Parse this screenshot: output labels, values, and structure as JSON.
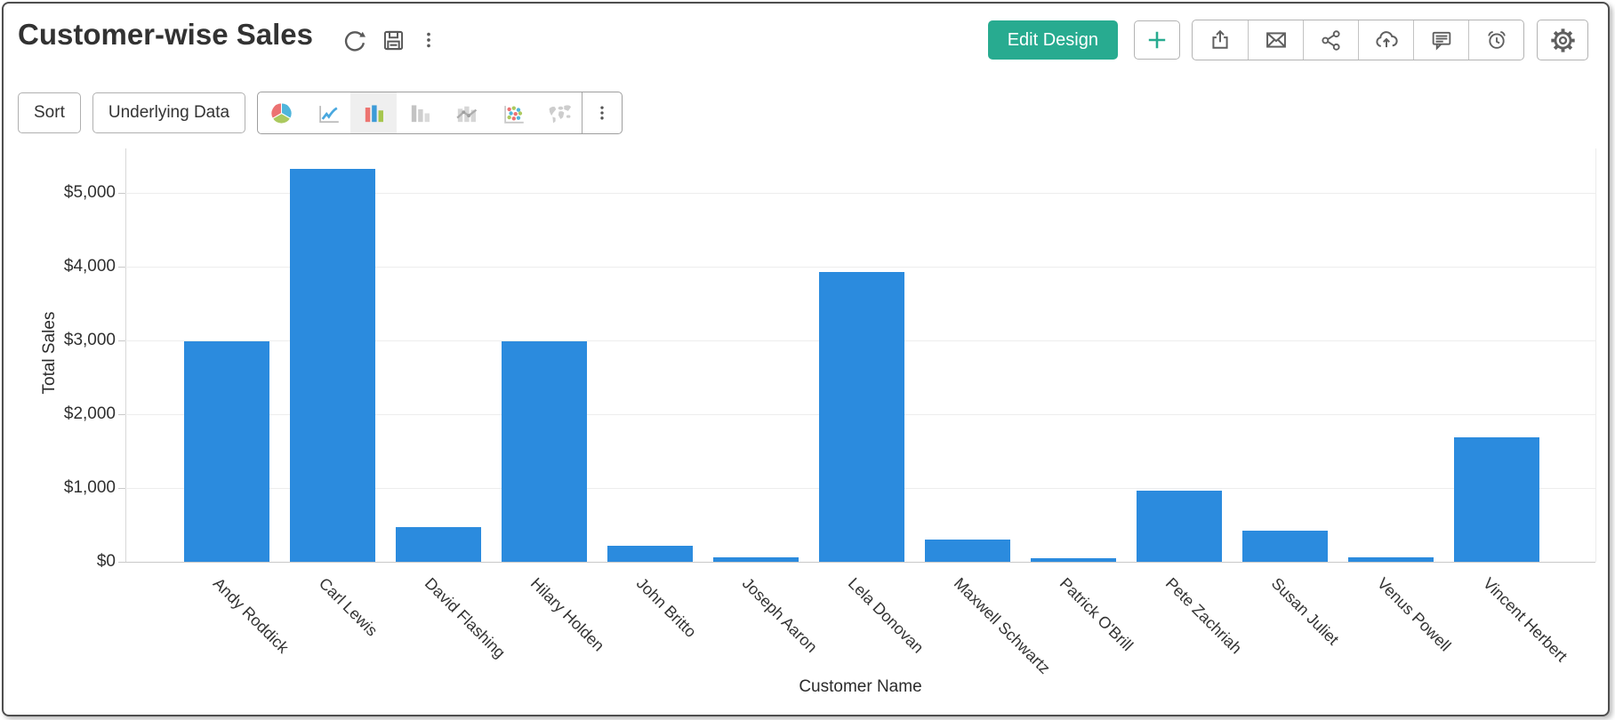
{
  "header": {
    "title": "Customer-wise Sales",
    "edit_design_button": "Edit Design",
    "title_action_icons": [
      "refresh-icon",
      "save-icon",
      "more-options-icon"
    ],
    "right_action_icons": [
      "add-icon",
      "export-icon",
      "email-icon",
      "share-icon",
      "cloud-upload-icon",
      "comment-icon",
      "alarm-icon",
      "settings-icon"
    ],
    "accent_green": "#28AB90"
  },
  "toolbar": {
    "sort_button": "Sort",
    "underlying_data_button": "Underlying Data",
    "chart_type_icons": [
      "pie-chart-icon",
      "line-chart-icon",
      "bar-chart-icon",
      "stacked-bar-chart-icon",
      "bar-line-combo-chart-icon",
      "scatter-chart-icon",
      "map-chart-icon",
      "more-chart-types-icon"
    ],
    "active_chart_type": "bar"
  },
  "chart_data": {
    "type": "bar",
    "title": "Customer-wise Sales",
    "xlabel": "Customer Name",
    "ylabel": "Total Sales",
    "categories": [
      "Andy Roddick",
      "Carl Lewis",
      "David Flashing",
      "Hilary Holden",
      "John Britto",
      "Joseph Aaron",
      "Lela Donovan",
      "Maxwell Schwartz",
      "Patrick O'Brill",
      "Pete Zachriah",
      "Susan Juliet",
      "Venus Powell",
      "Vincent Herbert"
    ],
    "values": [
      2985,
      5320,
      465,
      2985,
      215,
      60,
      3930,
      300,
      50,
      965,
      420,
      55,
      1690
    ],
    "ytick_labels": [
      "$0",
      "$1,000",
      "$2,000",
      "$3,000",
      "$4,000",
      "$5,000"
    ],
    "ylim": [
      0,
      5600
    ],
    "grid": true,
    "legend": "none",
    "bar_color": "#2B8BDE"
  }
}
